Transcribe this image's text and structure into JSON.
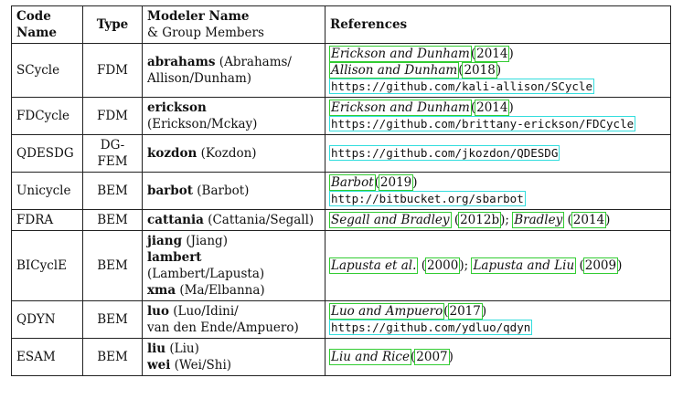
{
  "header": {
    "code_l1": "Code",
    "code_l2": "Name",
    "type": "Type",
    "modeler_l1": "Modeler Name",
    "modeler_l2": "& Group Members",
    "references": "References"
  },
  "rows": [
    {
      "code": "SCycle",
      "type": "FDM",
      "modelers": [
        {
          "name": "abrahams",
          "members": "(Abrahams/"
        },
        {
          "name": "",
          "members": "Allison/Dunham)"
        }
      ],
      "refs": [
        {
          "kind": "cite",
          "authors": "Erickson and Dunham",
          "year": "2014",
          "pre": "(",
          "post": ")"
        },
        {
          "kind": "cite",
          "authors": "Allison and Dunham",
          "year": "2018",
          "pre": "(",
          "post": ")"
        },
        {
          "kind": "url",
          "text": "https://github.com/kali-allison/SCycle"
        }
      ]
    },
    {
      "code": "FDCycle",
      "type": "FDM",
      "modelers": [
        {
          "name": "erickson",
          "members": "(Erickson/Mckay)"
        }
      ],
      "refs": [
        {
          "kind": "cite",
          "authors": "Erickson and Dunham",
          "year": "2014",
          "pre": "(",
          "post": ")"
        },
        {
          "kind": "url",
          "text": "https://github.com/brittany-erickson/FDCycle"
        }
      ]
    },
    {
      "code": "QDESDG",
      "type": "DG-FEM",
      "modelers": [
        {
          "name": "kozdon",
          "members": "(Kozdon)"
        }
      ],
      "refs": [
        {
          "kind": "url",
          "text": "https://github.com/jkozdon/QDESDG"
        }
      ]
    },
    {
      "code": "Unicycle",
      "type": "BEM",
      "modelers": [
        {
          "name": "barbot",
          "members": "(Barbot)"
        }
      ],
      "refs": [
        {
          "kind": "cite",
          "authors": "Barbot",
          "year": "2019",
          "pre": "(",
          "post": ")"
        },
        {
          "kind": "url",
          "text": "http://bitbucket.org/sbarbot"
        }
      ]
    },
    {
      "code": "FDRA",
      "type": "BEM",
      "modelers": [
        {
          "name": "cattania",
          "members": "(Cattania/Segall)"
        }
      ],
      "refs": [
        {
          "kind": "cite2",
          "a1": "Segall and Bradley",
          "y1": "2012b",
          "sep": ";",
          "a2": "Bradley",
          "y2": "2014"
        }
      ]
    },
    {
      "code": "BICyclE",
      "type": "BEM",
      "modelers": [
        {
          "name": "jiang",
          "members": "(Jiang)"
        },
        {
          "name": "lambert",
          "members": "(Lambert/Lapusta)"
        },
        {
          "name": "xma",
          "members": "(Ma/Elbanna)"
        }
      ],
      "refs": [
        {
          "kind": "cite2",
          "a1": "Lapusta et al.",
          "y1": "2000",
          "sep": ";",
          "a2": "Lapusta and Liu",
          "y2": "2009"
        }
      ]
    },
    {
      "code": "QDYN",
      "type": "BEM",
      "modelers": [
        {
          "name": "luo",
          "members": "(Luo/Idini/"
        },
        {
          "name": "",
          "members": "van den Ende/Ampuero)"
        }
      ],
      "refs": [
        {
          "kind": "cite",
          "authors": "Luo and Ampuero",
          "year": "2017",
          "pre": "(",
          "post": ")"
        },
        {
          "kind": "url",
          "text": "https://github.com/ydluo/qdyn"
        }
      ]
    },
    {
      "code": "ESAM",
      "type": "BEM",
      "modelers": [
        {
          "name": "liu",
          "members": "(Liu)"
        },
        {
          "name": "wei",
          "members": "(Wei/Shi)"
        }
      ],
      "refs": [
        {
          "kind": "cite",
          "authors": "Liu and Rice",
          "year": "2007",
          "pre": "(",
          "post": ")"
        }
      ]
    }
  ]
}
